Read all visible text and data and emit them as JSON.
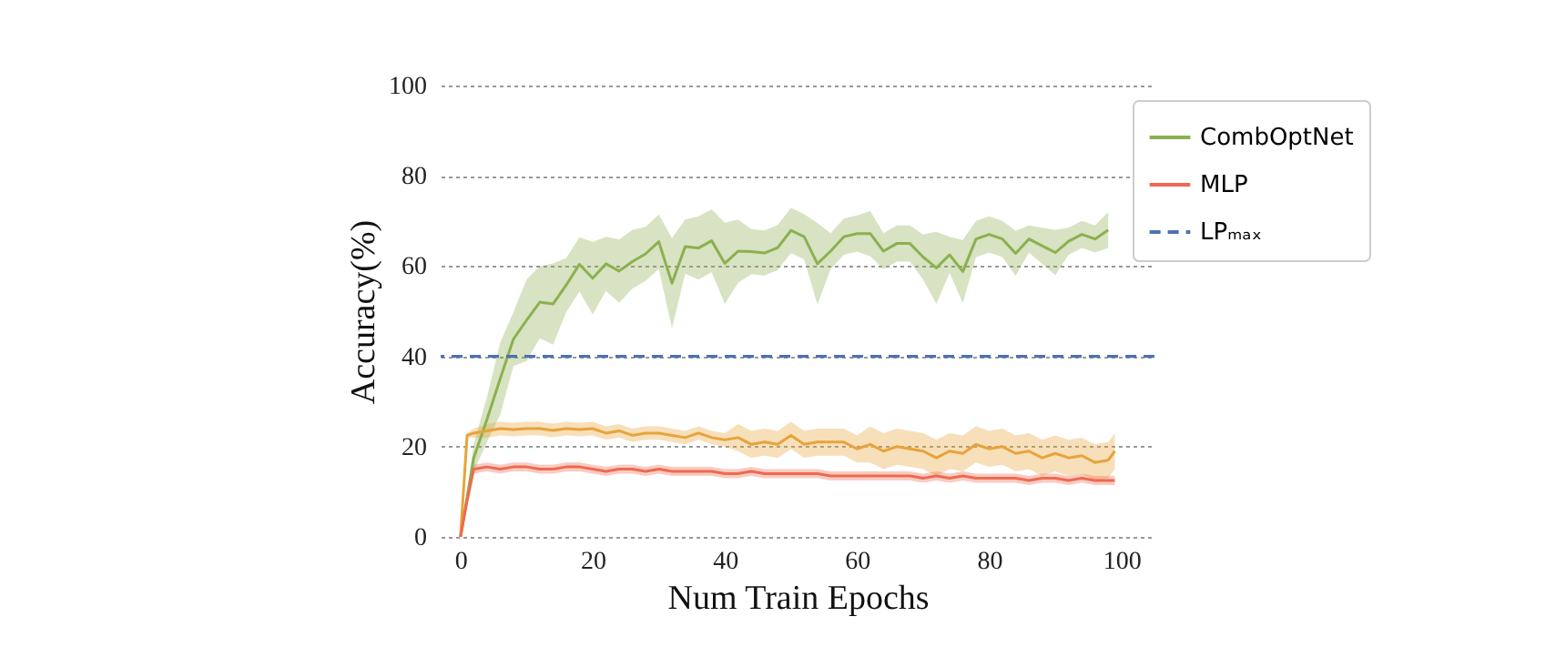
{
  "chart_data": {
    "type": "line",
    "xlabel": "Num Train Epochs",
    "ylabel": "Accuracy(%)",
    "xlim": [
      -3,
      105
    ],
    "ylim": [
      0,
      100
    ],
    "xticks": [
      0,
      20,
      40,
      60,
      80,
      100
    ],
    "yticks": [
      0,
      20,
      40,
      60,
      80,
      100
    ],
    "grid": "y",
    "legend": "top right",
    "marker": "none",
    "line_style": "solid",
    "series": [
      {
        "name": "CombOptNet",
        "color": "#8cb04f",
        "x": [
          0,
          2,
          4,
          6,
          8,
          10,
          12,
          14,
          16,
          18,
          20,
          22,
          24,
          26,
          28,
          30,
          32,
          34,
          36,
          38,
          40,
          42,
          44,
          46,
          48,
          50,
          52,
          54,
          56,
          58,
          60,
          62,
          64,
          66,
          68,
          70,
          72,
          74,
          76,
          78,
          80,
          82,
          84,
          86,
          88,
          90,
          92,
          94,
          96,
          98
        ],
        "values": [
          0,
          17.5,
          26,
          35,
          43.8,
          48,
          52,
          51.6,
          55.8,
          60.4,
          57.3,
          60.5,
          58.9,
          61,
          62.7,
          65.4,
          56.2,
          64.3,
          64,
          65.6,
          60.6,
          63.3,
          63.2,
          62.9,
          64.1,
          67.9,
          66.5,
          60.5,
          63.3,
          66.5,
          67.2,
          67.2,
          63.3,
          65,
          65,
          62,
          59.6,
          62.5,
          58.8,
          66,
          67,
          66,
          62.8,
          66,
          64.5,
          63,
          65.5,
          67,
          66,
          68
        ],
        "upper": [
          0,
          20.5,
          31,
          43,
          49.8,
          57,
          60,
          60.6,
          61.8,
          66.4,
          65.3,
          66.5,
          65.9,
          68,
          68.7,
          71.4,
          66.2,
          70.3,
          71,
          72.6,
          69.6,
          70.3,
          68.2,
          67.9,
          69.1,
          72.9,
          71.5,
          69.5,
          67.3,
          70.5,
          71.2,
          72.2,
          67.3,
          69,
          69,
          67,
          67.6,
          66.5,
          65.8,
          70,
          71,
          70,
          67.8,
          69,
          68.5,
          68,
          68.5,
          70,
          69,
          72
        ],
        "lower": [
          0,
          14.5,
          21,
          27,
          37.8,
          39,
          44,
          42.6,
          49.8,
          54.4,
          49.3,
          54.5,
          51.9,
          55,
          56.7,
          59.4,
          46.2,
          58.3,
          57,
          58.6,
          51.6,
          56.3,
          58.2,
          57.9,
          59.1,
          62.9,
          61.5,
          51.5,
          59.3,
          62.5,
          63.2,
          62.2,
          59.3,
          61,
          61,
          57,
          51.6,
          58.5,
          51.8,
          62,
          63,
          62,
          57.8,
          63,
          60.5,
          58,
          62.5,
          64,
          63,
          64
        ]
      },
      {
        "color": "#e8a33a",
        "x": [
          0,
          1,
          2,
          4,
          6,
          8,
          10,
          12,
          14,
          16,
          18,
          20,
          22,
          24,
          26,
          28,
          30,
          32,
          34,
          36,
          38,
          40,
          42,
          44,
          46,
          48,
          50,
          52,
          54,
          56,
          58,
          60,
          62,
          64,
          66,
          68,
          70,
          72,
          74,
          76,
          78,
          80,
          82,
          84,
          86,
          88,
          90,
          92,
          94,
          96,
          98,
          99
        ],
        "values": [
          0,
          22.5,
          23,
          23.5,
          24,
          23.8,
          24,
          24,
          23.6,
          24,
          23.8,
          24,
          23,
          23.5,
          22.5,
          23,
          23,
          22.5,
          22,
          23,
          22,
          21.5,
          22,
          20.5,
          21,
          20.5,
          22.5,
          20.5,
          21,
          21,
          21,
          19.5,
          20.5,
          19,
          20,
          19.5,
          19,
          17.5,
          19,
          18.5,
          20.5,
          19.5,
          20,
          18.5,
          19,
          17.5,
          18.5,
          17.5,
          18,
          16.5,
          17,
          19
        ],
        "upper": [
          0,
          23,
          24,
          25,
          25.5,
          25.3,
          25.5,
          25.5,
          25.1,
          25.5,
          25.3,
          25.5,
          24.5,
          25,
          24,
          24.5,
          24.5,
          24,
          23.5,
          24.5,
          23.5,
          23,
          25,
          23.5,
          24,
          23.5,
          25.5,
          23.5,
          24,
          24,
          24,
          22.5,
          24.5,
          23,
          24,
          23.5,
          23,
          21.5,
          23,
          22.5,
          24.5,
          23.5,
          24,
          22.5,
          23,
          21.5,
          22.5,
          21.5,
          22,
          20.5,
          21,
          23
        ],
        "lower": [
          0,
          22,
          22,
          22,
          22.5,
          22.3,
          22.5,
          22.5,
          22.1,
          22.5,
          22.3,
          22.5,
          21.5,
          22,
          21,
          21.5,
          21.5,
          21,
          20.5,
          21.5,
          20.5,
          20,
          19,
          17.5,
          18,
          17.5,
          19.5,
          17.5,
          18,
          18,
          18,
          16.5,
          16.5,
          15,
          16,
          15.5,
          15,
          13.5,
          15,
          14.5,
          16.5,
          15.5,
          16,
          14.5,
          15,
          13.5,
          14.5,
          13.5,
          14,
          12.5,
          13,
          15
        ]
      },
      {
        "name": "MLP",
        "color": "#ee6a50",
        "x": [
          0,
          1,
          2,
          4,
          6,
          8,
          10,
          12,
          14,
          16,
          18,
          20,
          22,
          24,
          26,
          28,
          30,
          32,
          34,
          36,
          38,
          40,
          42,
          44,
          46,
          48,
          50,
          52,
          54,
          56,
          58,
          60,
          62,
          64,
          66,
          68,
          70,
          72,
          74,
          76,
          78,
          80,
          82,
          84,
          86,
          88,
          90,
          92,
          94,
          96,
          98,
          99
        ],
        "values": [
          0,
          8,
          15,
          15.5,
          15,
          15.5,
          15.5,
          15,
          15,
          15.5,
          15.5,
          15,
          14.5,
          15,
          15,
          14.5,
          15,
          14.5,
          14.5,
          14.5,
          14.5,
          14,
          14,
          14.5,
          14,
          14,
          14,
          14,
          14,
          13.5,
          13.5,
          13.5,
          13.5,
          13.5,
          13.5,
          13.5,
          13,
          13.5,
          13,
          13.5,
          13,
          13,
          13,
          13,
          12.5,
          13,
          13,
          12.5,
          13,
          12.5,
          12.5,
          12.5
        ],
        "upper": [
          0,
          8.5,
          16,
          16.5,
          16,
          16.5,
          16.5,
          16,
          16,
          16.5,
          16.5,
          16,
          15.5,
          16,
          16,
          15.5,
          16,
          15.5,
          15.5,
          15.5,
          15.5,
          15,
          15,
          15.5,
          15,
          15,
          15,
          15,
          15,
          14.5,
          14.5,
          14.5,
          14.5,
          14.5,
          14.5,
          14.5,
          14,
          14.5,
          14,
          14.5,
          14,
          14,
          14,
          14,
          13.5,
          14,
          14,
          13.5,
          14,
          13.5,
          13.5,
          13.5
        ],
        "lower": [
          0,
          7.5,
          14,
          14.5,
          14,
          14.5,
          14.5,
          14,
          14,
          14.5,
          14.5,
          14,
          13.5,
          14,
          14,
          13.5,
          14,
          13.5,
          13.5,
          13.5,
          13.5,
          13,
          13,
          13.5,
          13,
          13,
          13,
          13,
          13,
          12.5,
          12.5,
          12.5,
          12.5,
          12.5,
          12.5,
          12.5,
          12,
          12.5,
          12,
          12.5,
          12,
          12,
          12,
          12,
          11.5,
          12,
          12,
          11.5,
          12,
          11.5,
          11.5,
          11.5
        ]
      }
    ],
    "ref_lines": [
      {
        "axis": "y",
        "value": 40,
        "label": "LPₘₐₓ",
        "color": "#4c72b0",
        "line_style": "dashed"
      }
    ]
  }
}
